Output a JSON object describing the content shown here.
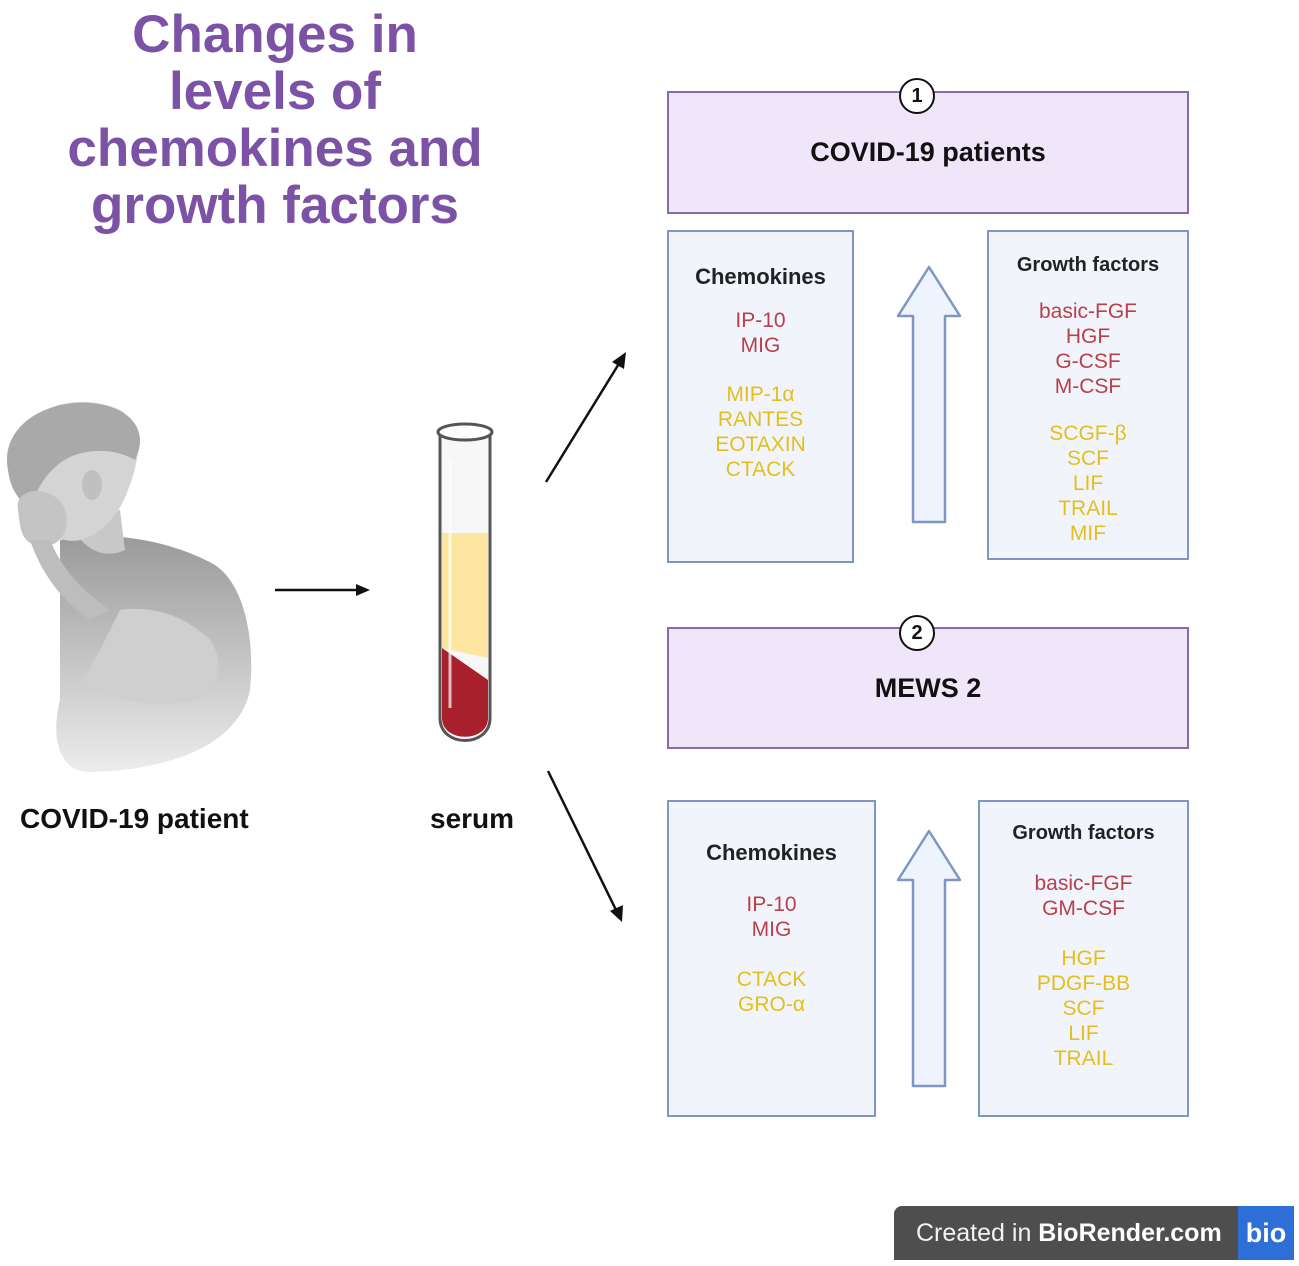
{
  "title": [
    "Changes in",
    "levels of",
    "chemokines and",
    "growth factors"
  ],
  "patient_label": "COVID-19 patient",
  "serum_label": "serum",
  "groups": [
    {
      "number": "1",
      "name": "COVID-19 patients",
      "chemokines": {
        "title": "Chemokines",
        "red": [
          "IP-10",
          "MIG"
        ],
        "gold": [
          "MIP-1α",
          "RANTES",
          "EOTAXIN",
          "CTACK"
        ]
      },
      "growth_factors": {
        "title": "Growth factors",
        "red": [
          "basic-FGF",
          "HGF",
          "G-CSF",
          "M-CSF"
        ],
        "gold": [
          "SCGF-β",
          "SCF",
          "LIF",
          "TRAIL",
          "MIF"
        ]
      }
    },
    {
      "number": "2",
      "name": "MEWS 2",
      "chemokines": {
        "title": "Chemokines",
        "red": [
          "IP-10",
          "MIG"
        ],
        "gold": [
          "CTACK",
          "GRO-α"
        ]
      },
      "growth_factors": {
        "title": "Growth factors",
        "red": [
          "basic-FGF",
          "GM-CSF"
        ],
        "gold": [
          "HGF",
          "PDGF-BB",
          "SCF",
          "LIF",
          "TRAIL"
        ]
      }
    }
  ],
  "badge": {
    "prefix": "Created in ",
    "brand": "BioRender.com",
    "logo": "bio"
  },
  "colors": {
    "title": "#7b52a6",
    "increase_strong": "#b8404a",
    "increase_mild": "#e3bf1d",
    "header_fill": "#efe6fa",
    "panel_fill": "#f1f5fb"
  },
  "icons": [
    "coughing-person-illustration",
    "blood-tube-icon",
    "up-arrow-icon",
    "right-arrow-icon"
  ]
}
